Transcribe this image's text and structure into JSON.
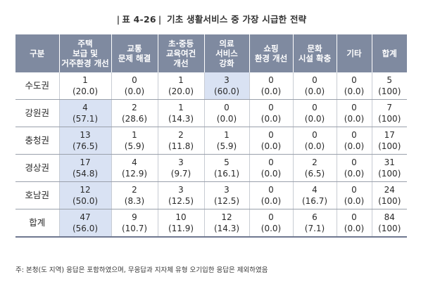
{
  "title": {
    "prefix": "표 4-26",
    "text": "기초 생활서비스 중 가장 시급한 전략"
  },
  "table": {
    "headers": [
      [
        "구분"
      ],
      [
        "주택",
        "보급 및",
        "거주환경 개선"
      ],
      [
        "교통",
        "문제 해결"
      ],
      [
        "초·중등",
        "교육여건",
        "개선"
      ],
      [
        "의료",
        "서비스",
        "강화"
      ],
      [
        "쇼핑",
        "환경 개선"
      ],
      [
        "문화",
        "시설 확충"
      ],
      [
        "기타"
      ],
      [
        "합계"
      ]
    ],
    "rows": [
      {
        "label": "수도권",
        "cells": [
          [
            "1",
            "(20.0)"
          ],
          [
            "0",
            "(0.0)"
          ],
          [
            "1",
            "(20.0)"
          ],
          [
            "3",
            "(60.0)"
          ],
          [
            "0",
            "(0.0)"
          ],
          [
            "0",
            "(0.0)"
          ],
          [
            "0",
            "(0.0)"
          ],
          [
            "5",
            "(100)"
          ]
        ]
      },
      {
        "label": "강원권",
        "cells": [
          [
            "4",
            "(57.1)"
          ],
          [
            "2",
            "(28.6)"
          ],
          [
            "1",
            "(14.3)"
          ],
          [
            "0",
            "(0.0)"
          ],
          [
            "0",
            "(0.0)"
          ],
          [
            "0",
            "(0.0)"
          ],
          [
            "0",
            "(0.0)"
          ],
          [
            "7",
            "(100)"
          ]
        ]
      },
      {
        "label": "충청권",
        "cells": [
          [
            "13",
            "(76.5)"
          ],
          [
            "1",
            "(5.9)"
          ],
          [
            "2",
            "(11.8)"
          ],
          [
            "1",
            "(5.9)"
          ],
          [
            "0",
            "(0.0)"
          ],
          [
            "0",
            "(0.0)"
          ],
          [
            "0",
            "(0.0)"
          ],
          [
            "17",
            "(100)"
          ]
        ]
      },
      {
        "label": "경상권",
        "cells": [
          [
            "17",
            "(54.8)"
          ],
          [
            "4",
            "(12.9)"
          ],
          [
            "3",
            "(9.7)"
          ],
          [
            "5",
            "(16.1)"
          ],
          [
            "0",
            "(0.0)"
          ],
          [
            "2",
            "(6.5)"
          ],
          [
            "0",
            "(0.0)"
          ],
          [
            "31",
            "(100)"
          ]
        ]
      },
      {
        "label": "호남권",
        "cells": [
          [
            "12",
            "(50.0)"
          ],
          [
            "2",
            "(8.3)"
          ],
          [
            "3",
            "(12.5)"
          ],
          [
            "3",
            "(12.5)"
          ],
          [
            "0",
            "(0.0)"
          ],
          [
            "4",
            "(16.7)"
          ],
          [
            "0",
            "(0.0)"
          ],
          [
            "24",
            "(100)"
          ]
        ]
      },
      {
        "label": "합계",
        "cells": [
          [
            "47",
            "(56.0)"
          ],
          [
            "9",
            "(10.7)"
          ],
          [
            "10",
            "(11.9)"
          ],
          [
            "12",
            "(14.3)"
          ],
          [
            "0",
            "(0.0)"
          ],
          [
            "6",
            "(7.1)"
          ],
          [
            "0",
            "(0.0)"
          ],
          [
            "84",
            "(100)"
          ]
        ]
      }
    ],
    "highlight_color": "#d9e2f3",
    "header_color": "#7f8aa0"
  },
  "note": "주: 본청(도 지역) 응답은 포함하였으며, 무응답과 지자체 유형 오기입한 응답은 제외하였음"
}
